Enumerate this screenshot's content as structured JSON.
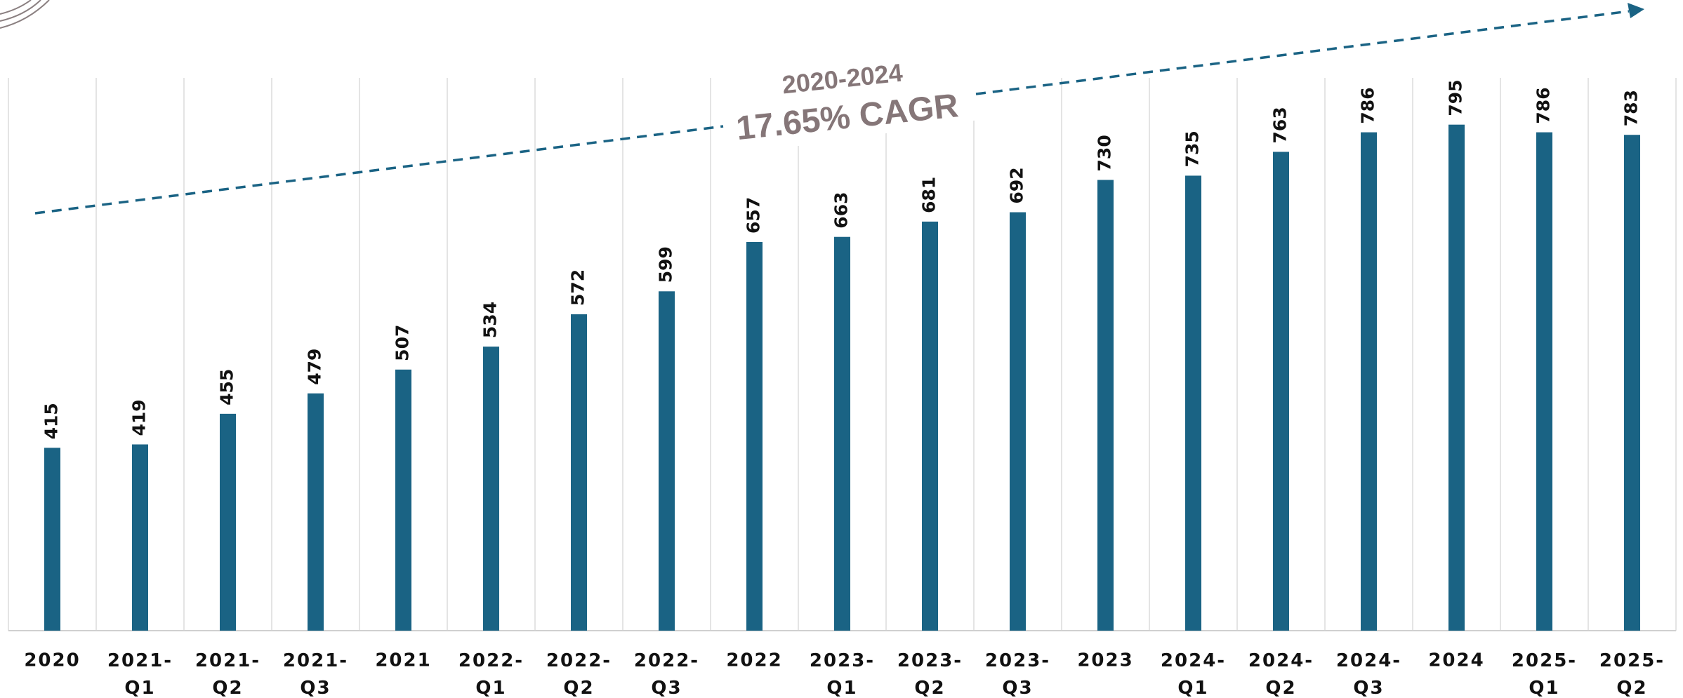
{
  "chart_data": {
    "type": "bar",
    "categories": [
      "2020",
      "2021-Q1",
      "2021-Q2",
      "2021-Q3",
      "2021",
      "2022-Q1",
      "2022-Q2",
      "2022-Q3",
      "2022",
      "2023-Q1",
      "2023-Q2",
      "2023-Q3",
      "2023",
      "2024-Q1",
      "2024-Q2",
      "2024-Q3",
      "2024",
      "2025-Q1",
      "2025-Q2"
    ],
    "values": [
      415,
      419,
      455,
      479,
      507,
      534,
      572,
      599,
      657,
      663,
      681,
      692,
      730,
      735,
      763,
      786,
      795,
      786,
      783
    ],
    "color": "#1a6384",
    "ylim": [
      200,
      850
    ],
    "grid": true,
    "annotations": [
      "2020-2024",
      "17.65% CAGR"
    ]
  }
}
